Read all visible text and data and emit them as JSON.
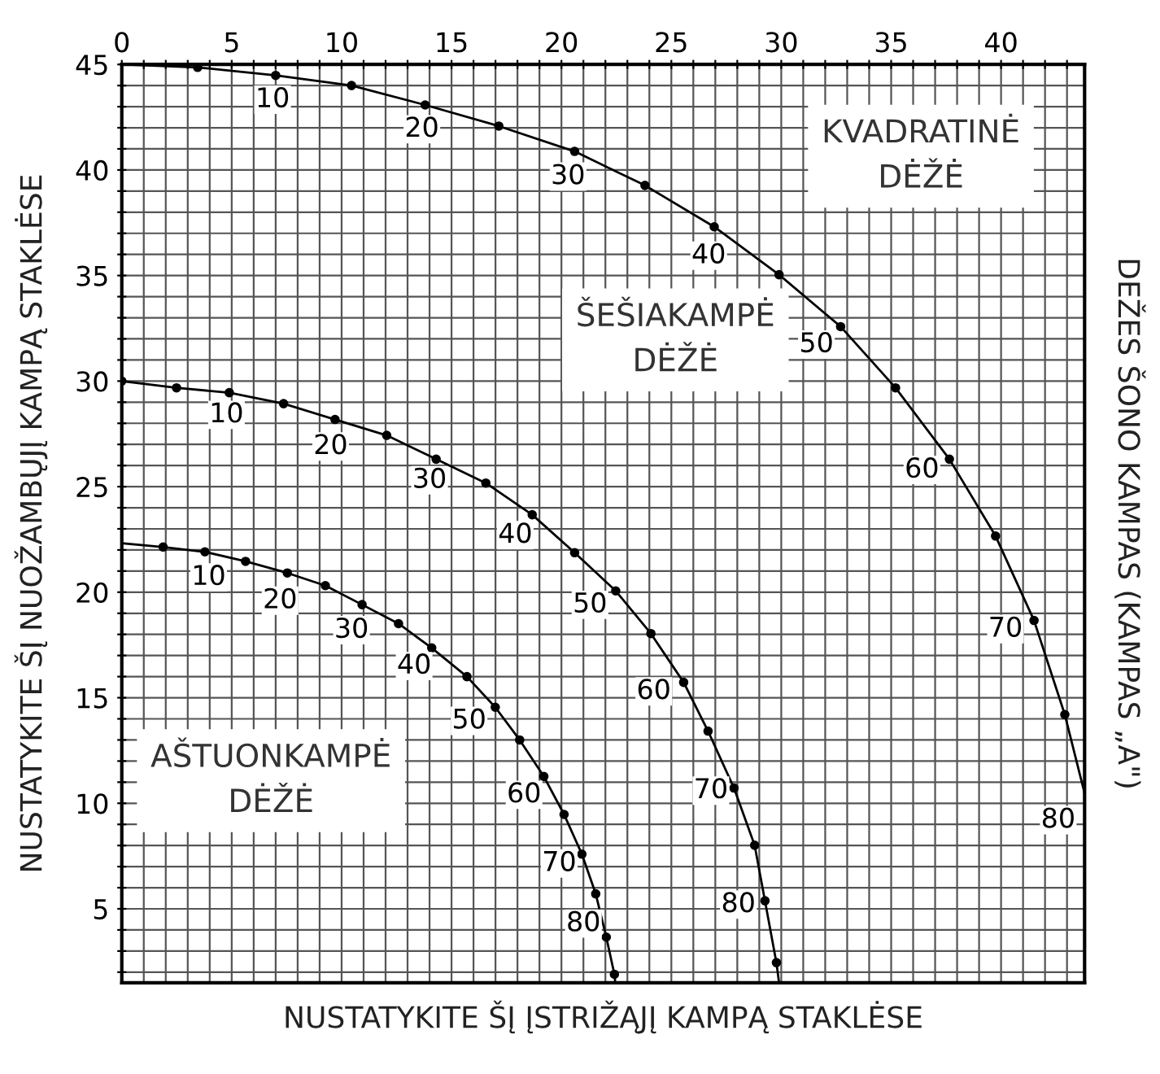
{
  "chart_data": {
    "type": "line",
    "xlabel": "NUSTATYKITE ŠĮ ĮSTRIŽĄJĮ KAMPĄ STAKLĖSE",
    "ylabel": "NUSTATYKITE ŠĮ NUOŽAMBŲJĮ KAMPĄ STAKLĖSE",
    "xlim": [
      0,
      43.8
    ],
    "ylim": [
      1.5,
      45
    ],
    "xticks": [
      0,
      {
        "value": 1,
        "label": null
      },
      {
        "value": 2,
        "label": null
      },
      {
        "value": 3,
        "label": null
      },
      {
        "value": 4,
        "label": null
      },
      5,
      {
        "value": 6,
        "label": null
      },
      {
        "value": 7,
        "label": null
      },
      {
        "value": 8,
        "label": null
      },
      {
        "value": 9,
        "label": null
      },
      10,
      {
        "value": 11,
        "label": null
      },
      {
        "value": 12,
        "label": null
      },
      {
        "value": 13,
        "label": null
      },
      {
        "value": 14,
        "label": null
      },
      15,
      {
        "value": 16,
        "label": null
      },
      {
        "value": 17,
        "label": null
      },
      {
        "value": 18,
        "label": null
      },
      {
        "value": 19,
        "label": null
      },
      20,
      {
        "value": 21,
        "label": null
      },
      {
        "value": 22,
        "label": null
      },
      {
        "value": 23,
        "label": null
      },
      {
        "value": 24,
        "label": null
      },
      25,
      {
        "value": 26,
        "label": null
      },
      {
        "value": 27,
        "label": null
      },
      {
        "value": 28,
        "label": null
      },
      {
        "value": 29,
        "label": null
      },
      30,
      {
        "value": 31,
        "label": null
      },
      {
        "value": 32,
        "label": null
      },
      {
        "value": 33,
        "label": null
      },
      {
        "value": 34,
        "label": null
      },
      35,
      {
        "value": 36,
        "label": null
      },
      {
        "value": 37,
        "label": null
      },
      {
        "value": 38,
        "label": null
      },
      {
        "value": 39,
        "label": null
      },
      40,
      {
        "value": 41,
        "label": null
      },
      {
        "value": 42,
        "label": null
      },
      {
        "value": 43,
        "label": null
      }
    ],
    "yticks": [
      {
        "value": 2,
        "label": null
      },
      {
        "value": 3,
        "label": null
      },
      {
        "value": 4,
        "label": null
      },
      5,
      {
        "value": 6,
        "label": null
      },
      {
        "value": 7,
        "label": null
      },
      {
        "value": 8,
        "label": null
      },
      {
        "value": 9,
        "label": null
      },
      10,
      {
        "value": 11,
        "label": null
      },
      {
        "value": 12,
        "label": null
      },
      {
        "value": 13,
        "label": null
      },
      {
        "value": 14,
        "label": null
      },
      15,
      {
        "value": 16,
        "label": null
      },
      {
        "value": 17,
        "label": null
      },
      {
        "value": 18,
        "label": null
      },
      {
        "value": 19,
        "label": null
      },
      20,
      {
        "value": 21,
        "label": null
      },
      {
        "value": 22,
        "label": null
      },
      {
        "value": 23,
        "label": null
      },
      {
        "value": 24,
        "label": null
      },
      25,
      {
        "value": 26,
        "label": null
      },
      {
        "value": 27,
        "label": null
      },
      {
        "value": 28,
        "label": null
      },
      {
        "value": 29,
        "label": null
      },
      30,
      {
        "value": 31,
        "label": null
      },
      {
        "value": 32,
        "label": null
      },
      {
        "value": 33,
        "label": null
      },
      {
        "value": 34,
        "label": null
      },
      35,
      {
        "value": 36,
        "label": null
      },
      {
        "value": 37,
        "label": null
      },
      {
        "value": 38,
        "label": null
      },
      {
        "value": 39,
        "label": null
      },
      40,
      {
        "value": 41,
        "label": null
      },
      {
        "value": 42,
        "label": null
      },
      {
        "value": 43,
        "label": null
      },
      {
        "value": 44,
        "label": null
      },
      45
    ],
    "grid": true,
    "legend": false,
    "line_style": "solid",
    "series": [
      {
        "marker": "none",
        "color": "#000000",
        "x": [
          0,
          3.45,
          7.0,
          10.45,
          13.8,
          17.15,
          20.6,
          23.8,
          26.95,
          29.9,
          32.7,
          35.2,
          37.65,
          39.75,
          41.5,
          42.9,
          43.8
        ],
        "values": [
          45,
          44.86,
          44.48,
          44.0,
          43.08,
          42.08,
          40.88,
          39.27,
          37.31,
          35.04,
          32.58,
          29.68,
          26.3,
          22.66,
          18.66,
          14.2,
          10.47
        ]
      },
      {
        "type": "scatter",
        "marker": "circle",
        "color": "#000000",
        "x": [
          3.45,
          7.0,
          10.45,
          13.8,
          17.15,
          20.6,
          23.8,
          26.95,
          29.9,
          32.7,
          35.2,
          37.65,
          39.75,
          41.5,
          42.9
        ],
        "values": [
          44.86,
          44.48,
          44.0,
          43.08,
          42.08,
          40.88,
          39.27,
          37.31,
          35.04,
          32.58,
          29.68,
          26.3,
          22.66,
          18.66,
          14.2
        ]
      },
      {
        "marker": "none",
        "color": "#000000",
        "x": [
          0,
          2.49,
          4.89,
          7.36,
          9.7,
          12.05,
          14.3,
          16.56,
          18.67,
          20.6,
          22.47,
          24.07,
          25.56,
          26.67,
          27.85,
          28.79,
          29.26,
          29.78,
          29.9
        ],
        "values": [
          30,
          29.68,
          29.45,
          28.93,
          28.18,
          27.43,
          26.3,
          25.17,
          23.67,
          21.87,
          20.06,
          18.04,
          15.73,
          13.42,
          10.72,
          8.01,
          5.38,
          2.45,
          1.5
        ]
      },
      {
        "type": "scatter",
        "marker": "circle",
        "color": "#000000",
        "x": [
          0,
          2.49,
          4.89,
          7.36,
          9.7,
          12.05,
          14.3,
          16.56,
          18.67,
          20.6,
          22.47,
          24.07,
          25.56,
          26.67,
          27.85,
          28.79,
          29.26,
          29.78
        ],
        "values": [
          30,
          29.68,
          29.45,
          28.93,
          28.18,
          27.43,
          26.3,
          25.17,
          23.67,
          21.87,
          20.06,
          18.04,
          15.73,
          13.42,
          10.72,
          8.01,
          5.38,
          2.45
        ]
      },
      {
        "marker": "none",
        "color": "#000000",
        "x": [
          0,
          1.88,
          3.78,
          5.63,
          7.53,
          9.26,
          10.93,
          12.59,
          14.1,
          15.7,
          16.99,
          18.1,
          19.2,
          20.12,
          20.93,
          21.56,
          22.04,
          22.41,
          22.45
        ],
        "values": [
          22.32,
          22.14,
          21.91,
          21.46,
          20.91,
          20.31,
          19.41,
          18.51,
          17.36,
          16.0,
          14.55,
          13.0,
          11.27,
          9.47,
          7.59,
          5.71,
          3.66,
          1.9,
          1.5
        ]
      },
      {
        "type": "scatter",
        "marker": "circle",
        "color": "#000000",
        "x": [
          1.88,
          3.78,
          5.63,
          7.53,
          9.26,
          10.93,
          12.59,
          14.1,
          15.7,
          16.99,
          18.1,
          19.2,
          20.12,
          20.93,
          21.56,
          22.04,
          22.41
        ],
        "values": [
          22.14,
          21.91,
          21.46,
          20.91,
          20.31,
          19.41,
          18.51,
          17.36,
          16.0,
          14.55,
          13.0,
          11.27,
          9.47,
          7.59,
          5.71,
          3.66,
          1.9
        ]
      }
    ],
    "annotations": [
      "KVADRATINĖ\nDĖŽĖ",
      "ŠEŠIAKAMPĖ\nDĖŽĖ",
      "AŠTUONKAMPĖ\nDĖŽĖ",
      "DEŽES ŠONO KAMPAS (KAMPAS „A\")",
      {
        "text": "10",
        "x": 6.86,
        "y": 43.33
      },
      {
        "text": "20",
        "x": 13.65,
        "y": 41.93
      },
      {
        "text": "30",
        "x": 20.3,
        "y": 39.69
      },
      {
        "text": "40",
        "x": 26.7,
        "y": 35.94
      },
      {
        "text": "50",
        "x": 31.6,
        "y": 31.73
      },
      {
        "text": "60",
        "x": 36.4,
        "y": 25.79
      },
      {
        "text": "70",
        "x": 40.2,
        "y": 18.25
      },
      {
        "text": "80",
        "x": 42.6,
        "y": 9.2
      },
      {
        "text": "10",
        "x": 4.76,
        "y": 28.4
      },
      {
        "text": "20",
        "x": 9.5,
        "y": 26.9
      },
      {
        "text": "30",
        "x": 14.0,
        "y": 25.3
      },
      {
        "text": "40",
        "x": 17.9,
        "y": 22.7
      },
      {
        "text": "50",
        "x": 21.3,
        "y": 19.4
      },
      {
        "text": "60",
        "x": 24.2,
        "y": 15.3
      },
      {
        "text": "70",
        "x": 26.8,
        "y": 10.6
      },
      {
        "text": "80",
        "x": 28.05,
        "y": 5.2
      },
      {
        "text": "10",
        "x": 3.95,
        "y": 20.7
      },
      {
        "text": "20",
        "x": 7.2,
        "y": 19.6
      },
      {
        "text": "30",
        "x": 10.45,
        "y": 18.2
      },
      {
        "text": "40",
        "x": 13.3,
        "y": 16.5
      },
      {
        "text": "50",
        "x": 15.8,
        "y": 13.9
      },
      {
        "text": "60",
        "x": 18.3,
        "y": 10.4
      },
      {
        "text": "70",
        "x": 19.9,
        "y": 7.15
      },
      {
        "text": "80",
        "x": 21.0,
        "y": 4.3
      }
    ]
  }
}
